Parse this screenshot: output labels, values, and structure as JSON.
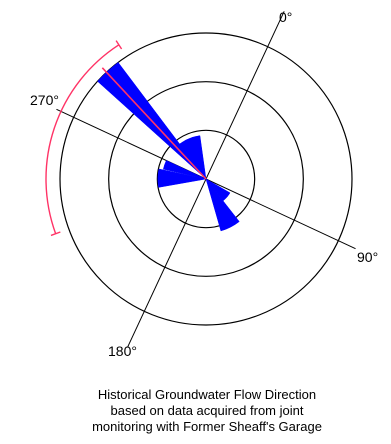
{
  "chart_data": {
    "type": "rose",
    "direction_labels": [
      {
        "angle_deg": 0,
        "text": "0°"
      },
      {
        "angle_deg": 90,
        "text": "90°"
      },
      {
        "angle_deg": 180,
        "text": "180°"
      },
      {
        "angle_deg": 270,
        "text": "270°"
      }
    ],
    "orientation": "rotated 25° clockwise from screen up",
    "rings": 3,
    "bins": [
      {
        "start_deg": 287,
        "end_deg": 298,
        "radius": 1.0
      },
      {
        "start_deg": 288,
        "end_deg": 327,
        "radius": 0.3
      },
      {
        "start_deg": 258,
        "end_deg": 270,
        "radius": 0.3
      },
      {
        "start_deg": 235,
        "end_deg": 257,
        "radius": 0.33
      },
      {
        "start_deg": 117,
        "end_deg": 139,
        "radius": 0.37
      },
      {
        "start_deg": 95,
        "end_deg": 117,
        "radius": 0.19
      }
    ],
    "mean_direction_deg": 292,
    "range_arc": {
      "start_deg": 225,
      "end_deg": 302
    },
    "colors": {
      "bins": "#0000ff",
      "mean_direction": "#ff3366",
      "range_arc": "#ff3366",
      "axes": "#000000"
    },
    "caption": [
      "Historical Groundwater Flow Direction",
      "based on data acquired from joint",
      "monitoring with Former Sheaff's Garage"
    ]
  }
}
